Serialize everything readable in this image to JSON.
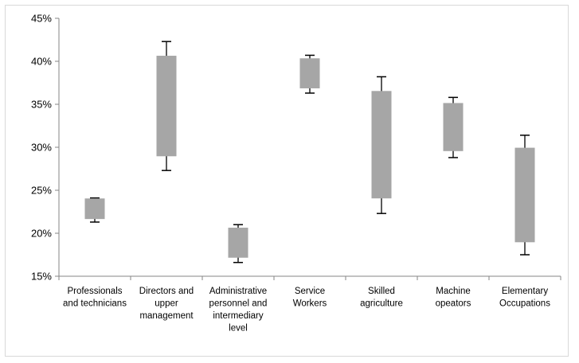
{
  "chart_data": {
    "type": "box",
    "title": "",
    "xlabel": "",
    "ylabel": "",
    "ylim": [
      15,
      45
    ],
    "y_unit": "%",
    "y_ticks": [
      "15%",
      "20%",
      "25%",
      "30%",
      "35%",
      "40%",
      "45%"
    ],
    "y_tick_values": [
      15,
      20,
      25,
      30,
      35,
      40,
      45
    ],
    "grid": false,
    "legend": "none",
    "box_color": "#a6a6a6",
    "whisker_color": "#000000",
    "categories": [
      [
        "Professionals",
        "and technicians"
      ],
      [
        "Directors and",
        "upper",
        "management"
      ],
      [
        "Administrative",
        "personnel and",
        "intermediary",
        "level"
      ],
      [
        "Service",
        "Workers"
      ],
      [
        "Skilled",
        "agriculture"
      ],
      [
        "Machine",
        "opeators"
      ],
      [
        "Elementary",
        "Occupations"
      ]
    ],
    "series": [
      {
        "box_low": 21.7,
        "box_high": 24.0,
        "whisker_low": 21.3,
        "whisker_high": 24.1
      },
      {
        "box_low": 29.0,
        "box_high": 40.6,
        "whisker_low": 27.3,
        "whisker_high": 42.3
      },
      {
        "box_low": 17.2,
        "box_high": 20.6,
        "whisker_low": 16.6,
        "whisker_high": 21.0
      },
      {
        "box_low": 36.9,
        "box_high": 40.3,
        "whisker_low": 36.3,
        "whisker_high": 40.7
      },
      {
        "box_low": 24.1,
        "box_high": 36.5,
        "whisker_low": 22.3,
        "whisker_high": 38.2
      },
      {
        "box_low": 29.6,
        "box_high": 35.1,
        "whisker_low": 28.8,
        "whisker_high": 35.8
      },
      {
        "box_low": 19.0,
        "box_high": 29.9,
        "whisker_low": 17.5,
        "whisker_high": 31.4
      }
    ]
  }
}
